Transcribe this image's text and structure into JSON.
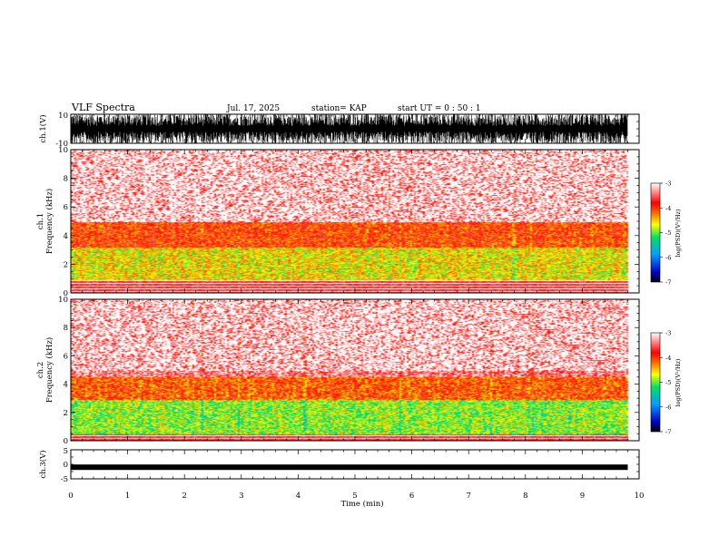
{
  "header": {
    "title": "VLF Spectra",
    "date": "Jul. 17, 2025",
    "station": "station= KAP",
    "start": "start UT =  0 : 50 : 1"
  },
  "chart_data": [
    {
      "type": "line",
      "name": "ch1-waveform",
      "ylabel": "ch.1(V)",
      "ylim": [
        -10,
        10
      ],
      "yticks": [
        10,
        -10
      ],
      "xlim": [
        0,
        10
      ],
      "description_values": {
        "data_end_min": 9.8
      }
    },
    {
      "type": "heatmap",
      "name": "ch1-spectrogram",
      "ylabel": "ch.1\nFrequency (kHz)",
      "ylim": [
        0,
        10
      ],
      "yticks": [
        0,
        2,
        4,
        6,
        8,
        10
      ],
      "xlim": [
        0,
        10
      ],
      "colorbar": {
        "label": "log(PSD)(V²/Hz)",
        "range": [
          -7,
          -3
        ],
        "ticks": [
          -3,
          -4,
          -5,
          -6,
          -7
        ]
      },
      "bands": [
        {
          "f_low": 0.9,
          "f_high": 3.2,
          "level": -4.6
        },
        {
          "f_low": 3.2,
          "f_high": 5.0,
          "level": -4.0
        },
        {
          "f_low": 5.0,
          "f_high": 10.0,
          "level": -3.4
        }
      ]
    },
    {
      "type": "heatmap",
      "name": "ch2-spectrogram",
      "ylabel": "ch.2\nFrequency (kHz)",
      "ylim": [
        0,
        10
      ],
      "yticks": [
        0,
        2,
        4,
        6,
        8,
        10
      ],
      "xlim": [
        0,
        10
      ],
      "colorbar": {
        "label": "log(PSD)(V²/Hz)",
        "range": [
          -7,
          -3
        ],
        "ticks": [
          -3,
          -4,
          -5,
          -6,
          -7
        ]
      },
      "bands": [
        {
          "f_low": 0.5,
          "f_high": 2.9,
          "level": -4.9
        },
        {
          "f_low": 2.9,
          "f_high": 4.5,
          "level": -4.1
        },
        {
          "f_low": 4.5,
          "f_high": 10.0,
          "level": -3.4
        }
      ]
    },
    {
      "type": "line",
      "name": "ch3-waveform",
      "ylabel": "ch.3(V)",
      "ylim": [
        -5,
        5
      ],
      "yticks": [
        5,
        0,
        -5
      ],
      "xlim": [
        0,
        10
      ],
      "trace_level": -1.0
    }
  ],
  "xaxis": {
    "label": "Time (min)",
    "ticks": [
      "0",
      "1",
      "2",
      "3",
      "4",
      "5",
      "6",
      "7",
      "8",
      "9",
      "10"
    ]
  }
}
